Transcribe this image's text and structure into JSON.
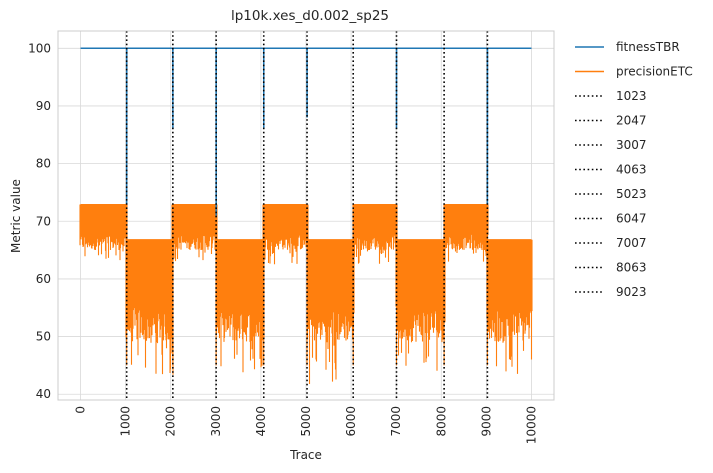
{
  "chart_data": {
    "type": "line",
    "title": "lp10k.xes_d0.002_sp25",
    "xlabel": "Trace",
    "ylabel": "Metric value",
    "xlim": [
      -500,
      10500
    ],
    "ylim": [
      39,
      103
    ],
    "xticks": [
      "0",
      "1000",
      "2000",
      "3000",
      "4000",
      "5000",
      "6000",
      "7000",
      "8000",
      "9000",
      "10000"
    ],
    "yticks": [
      "40",
      "50",
      "60",
      "70",
      "80",
      "90",
      "100"
    ],
    "grid": true,
    "legend_position": "outside-right",
    "series": [
      {
        "name": "fitnessTBR",
        "color": "#1f77b4",
        "x": [
          0,
          1023,
          1024,
          1025,
          2047,
          2048,
          2049,
          3007,
          3008,
          3009,
          4063,
          4064,
          4065,
          5023,
          5024,
          5025,
          6047,
          7007,
          7008,
          7009,
          8063,
          9023,
          9024,
          9025,
          10000
        ],
        "values": [
          100,
          100,
          73,
          100,
          100,
          86,
          100,
          100,
          71,
          100,
          100,
          86,
          100,
          100,
          88,
          100,
          100,
          100,
          86,
          100,
          100,
          100,
          73,
          100,
          100
        ]
      },
      {
        "name": "precisionETC",
        "color": "#ff7f0e",
        "segments": [
          {
            "from": 0,
            "to": 1023,
            "upper": 72.9,
            "lower": 65,
            "dip_min": 63
          },
          {
            "from": 1023,
            "to": 2047,
            "upper": 66.8,
            "lower": 49,
            "dip_min": 42.5
          },
          {
            "from": 2047,
            "to": 3007,
            "upper": 72.9,
            "lower": 65,
            "dip_min": 63
          },
          {
            "from": 3007,
            "to": 4063,
            "upper": 66.8,
            "lower": 49,
            "dip_min": 43
          },
          {
            "from": 4063,
            "to": 5023,
            "upper": 72.9,
            "lower": 65,
            "dip_min": 62.5
          },
          {
            "from": 5023,
            "to": 6047,
            "upper": 66.8,
            "lower": 49,
            "dip_min": 41.5
          },
          {
            "from": 6047,
            "to": 7007,
            "upper": 72.9,
            "lower": 65,
            "dip_min": 62.5
          },
          {
            "from": 7007,
            "to": 8063,
            "upper": 66.8,
            "lower": 49,
            "dip_min": 44
          },
          {
            "from": 8063,
            "to": 9023,
            "upper": 72.9,
            "lower": 65,
            "dip_min": 63
          },
          {
            "from": 9023,
            "to": 10000,
            "upper": 66.8,
            "lower": 49,
            "dip_min": 43
          }
        ]
      }
    ],
    "vlines": [
      {
        "name": "1023",
        "x": 1023
      },
      {
        "name": "2047",
        "x": 2047
      },
      {
        "name": "3007",
        "x": 3007
      },
      {
        "name": "4063",
        "x": 4063
      },
      {
        "name": "5023",
        "x": 5023
      },
      {
        "name": "6047",
        "x": 6047
      },
      {
        "name": "7007",
        "x": 7007
      },
      {
        "name": "8063",
        "x": 8063
      },
      {
        "name": "9023",
        "x": 9023
      }
    ],
    "vline_color": "#000000",
    "grid_color": "#d9d9d9",
    "text_color": "#262626"
  }
}
